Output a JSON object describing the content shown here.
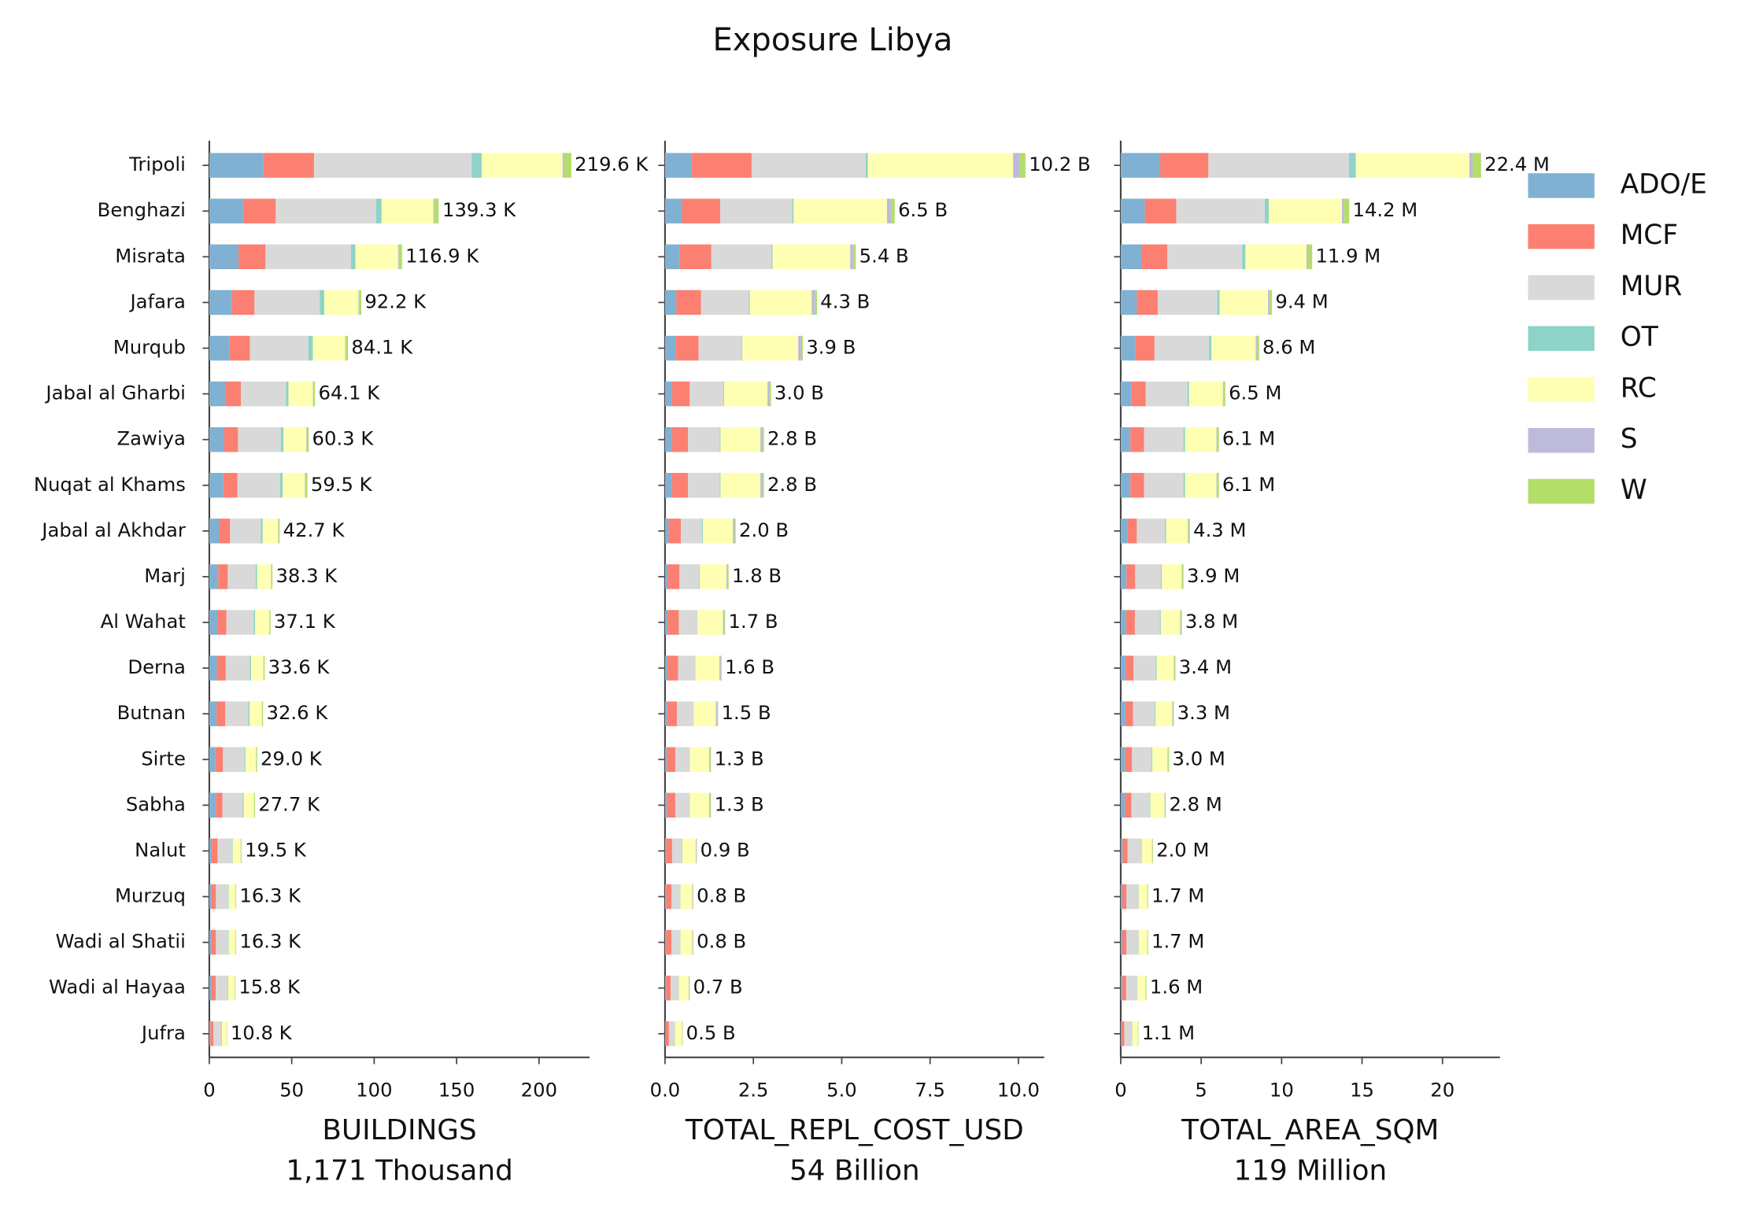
{
  "title": "Exposure Libya",
  "chart_data": [
    {
      "type": "bar",
      "orientation": "horizontal",
      "categories": [
        "Tripoli",
        "Benghazi",
        "Misrata",
        "Jafara",
        "Murqub",
        "Jabal al Gharbi",
        "Zawiya",
        "Nuqat al Khams",
        "Jabal al Akhdar",
        "Marj",
        "Al Wahat",
        "Derna",
        "Butnan",
        "Sirte",
        "Sabha",
        "Nalut",
        "Murzuq",
        "Wadi al Shatii",
        "Wadi al Hayaa",
        "Jufra"
      ],
      "xlabel": [
        "BUILDINGS",
        "1,171 Thousand"
      ],
      "xlim": [
        0,
        230.7
      ],
      "xticks": [
        0,
        50,
        100,
        150,
        200
      ],
      "totals": [
        219.6,
        139.3,
        116.9,
        92.2,
        84.1,
        64.1,
        60.3,
        59.5,
        42.7,
        38.3,
        37.1,
        33.6,
        32.6,
        29.0,
        27.7,
        19.5,
        16.3,
        16.3,
        15.8,
        10.8
      ],
      "total_labels": [
        "219.6 K",
        "139.3 K",
        "116.9 K",
        "92.2 K",
        "84.1 K",
        "64.1 K",
        "60.3 K",
        "59.5 K",
        "42.7 K",
        "38.3 K",
        "37.1 K",
        "33.6 K",
        "32.6 K",
        "29.0 K",
        "27.7 K",
        "19.5 K",
        "16.3 K",
        "16.3 K",
        "15.8 K",
        "10.8 K"
      ],
      "series": [
        {
          "name": "ADO/E",
          "color": "#80b1d3",
          "values": [
            32.8,
            20.5,
            17.7,
            13.7,
            12.3,
            9.6,
            8.9,
            8.5,
            6.0,
            5.4,
            4.8,
            4.6,
            4.4,
            3.5,
            4.0,
            1.5,
            1.2,
            1.2,
            1.2,
            0.6
          ]
        },
        {
          "name": "MCF",
          "color": "#fb8072",
          "values": [
            30.7,
            19.8,
            16.4,
            13.7,
            12.3,
            9.6,
            8.5,
            8.5,
            6.6,
            5.8,
            5.6,
            5.4,
            5.3,
            4.8,
            4.0,
            3.5,
            2.8,
            2.8,
            2.7,
            1.9
          ]
        },
        {
          "name": "MUR",
          "color": "#d9d9d9",
          "values": [
            95.6,
            60.8,
            51.8,
            39.6,
            35.5,
            27.3,
            26.0,
            26.0,
            18.6,
            16.9,
            16.6,
            14.5,
            14.0,
            13.0,
            12.3,
            8.8,
            7.4,
            7.4,
            7.2,
            4.9
          ]
        },
        {
          "name": "OT",
          "color": "#8dd3c7",
          "values": [
            6.1,
            3.4,
            2.7,
            2.7,
            2.7,
            1.5,
            1.6,
            1.5,
            1.2,
            0.9,
            0.8,
            0.8,
            0.8,
            0.6,
            0.6,
            0.4,
            0.4,
            0.4,
            0.4,
            0.3
          ]
        },
        {
          "name": "RC",
          "color": "#ffffb3",
          "values": [
            49.1,
            31.4,
            25.9,
            20.8,
            19.6,
            14.8,
            13.8,
            13.5,
            9.3,
            8.4,
            8.5,
            7.5,
            7.4,
            6.4,
            6.2,
            4.8,
            4.1,
            4.1,
            3.9,
            2.8
          ]
        },
        {
          "name": "S",
          "color": "#bebada",
          "values": [
            1.0,
            0.5,
            0.4,
            0.3,
            0.3,
            0.2,
            0.3,
            0.3,
            0.2,
            0.2,
            0.1,
            0.2,
            0.1,
            0.1,
            0.1,
            0.1,
            0.1,
            0.1,
            0.1,
            0.1
          ]
        },
        {
          "name": "W",
          "color": "#b3de69",
          "values": [
            4.3,
            2.7,
            2.0,
            1.4,
            1.4,
            1.1,
            1.2,
            1.2,
            0.8,
            0.7,
            0.7,
            0.6,
            0.6,
            0.6,
            0.5,
            0.4,
            0.3,
            0.3,
            0.3,
            0.2
          ]
        }
      ]
    },
    {
      "type": "bar",
      "orientation": "horizontal",
      "xlabel": [
        "TOTAL_REPL_COST_USD",
        "54 Billion"
      ],
      "xlim": [
        0,
        10.73
      ],
      "xticks": [
        {
          "value": 0,
          "label": "0.0"
        },
        2.5,
        {
          "value": 5,
          "label": "5.0"
        },
        7.5,
        {
          "value": 10,
          "label": "10.0"
        }
      ],
      "totals": [
        10.2,
        6.5,
        5.4,
        4.3,
        3.9,
        3.0,
        2.8,
        2.8,
        2.0,
        1.8,
        1.7,
        1.6,
        1.5,
        1.3,
        1.3,
        0.9,
        0.8,
        0.8,
        0.7,
        0.5
      ],
      "total_labels": [
        "10.2 B",
        "6.5 B",
        "5.4 B",
        "4.3 B",
        "3.9 B",
        "3.0 B",
        "2.8 B",
        "2.8 B",
        "2.0 B",
        "1.8 B",
        "1.7 B",
        "1.6 B",
        "1.5 B",
        "1.3 B",
        "1.3 B",
        "0.9 B",
        "0.8 B",
        "0.8 B",
        "0.7 B",
        "0.5 B"
      ],
      "series": [
        {
          "values": [
            0.76,
            0.48,
            0.41,
            0.32,
            0.3,
            0.2,
            0.2,
            0.2,
            0.1,
            0.08,
            0.07,
            0.07,
            0.06,
            0.05,
            0.05,
            0.03,
            0.03,
            0.03,
            0.03,
            0.02
          ]
        },
        {
          "values": [
            1.69,
            1.08,
            0.9,
            0.7,
            0.65,
            0.5,
            0.45,
            0.45,
            0.35,
            0.33,
            0.32,
            0.3,
            0.28,
            0.24,
            0.24,
            0.17,
            0.15,
            0.15,
            0.13,
            0.09
          ]
        },
        {
          "values": [
            3.23,
            2.04,
            1.7,
            1.35,
            1.22,
            0.95,
            0.9,
            0.9,
            0.6,
            0.55,
            0.52,
            0.48,
            0.46,
            0.4,
            0.4,
            0.28,
            0.25,
            0.25,
            0.22,
            0.16
          ]
        },
        {
          "values": [
            0.06,
            0.04,
            0.03,
            0.03,
            0.02,
            0.02,
            0.02,
            0.02,
            0.02,
            0.02,
            0.01,
            0.01,
            0.01,
            0.01,
            0.01,
            0.01,
            0.01,
            0.01,
            0.01,
            0.01
          ]
        },
        {
          "values": [
            4.11,
            2.64,
            2.2,
            1.75,
            1.58,
            1.23,
            1.13,
            1.13,
            0.85,
            0.76,
            0.72,
            0.68,
            0.63,
            0.55,
            0.55,
            0.38,
            0.33,
            0.33,
            0.28,
            0.2
          ]
        },
        {
          "values": [
            0.19,
            0.12,
            0.09,
            0.09,
            0.08,
            0.06,
            0.06,
            0.06,
            0.05,
            0.04,
            0.04,
            0.04,
            0.04,
            0.03,
            0.03,
            0.02,
            0.02,
            0.02,
            0.02,
            0.01
          ]
        },
        {
          "values": [
            0.16,
            0.1,
            0.07,
            0.06,
            0.05,
            0.04,
            0.04,
            0.04,
            0.03,
            0.02,
            0.02,
            0.02,
            0.02,
            0.02,
            0.02,
            0.01,
            0.01,
            0.01,
            0.01,
            0.01
          ]
        }
      ]
    },
    {
      "type": "bar",
      "orientation": "horizontal",
      "xlabel": [
        "TOTAL_AREA_SQM",
        "119 Million"
      ],
      "xlim": [
        0,
        23.57
      ],
      "xticks": [
        0,
        5,
        10,
        15,
        20
      ],
      "totals": [
        22.4,
        14.2,
        11.9,
        9.4,
        8.6,
        6.5,
        6.1,
        6.1,
        4.3,
        3.9,
        3.8,
        3.4,
        3.3,
        3.0,
        2.8,
        2.0,
        1.7,
        1.7,
        1.6,
        1.1
      ],
      "total_labels": [
        "22.4 M",
        "14.2 M",
        "11.9 M",
        "9.4 M",
        "8.6 M",
        "6.5 M",
        "6.1 M",
        "6.1 M",
        "4.3 M",
        "3.9 M",
        "3.8 M",
        "3.4 M",
        "3.3 M",
        "3.0 M",
        "2.8 M",
        "2.0 M",
        "1.7 M",
        "1.7 M",
        "1.6 M",
        "1.1 M"
      ],
      "series": [
        {
          "values": [
            2.45,
            1.5,
            1.3,
            1.0,
            0.9,
            0.65,
            0.6,
            0.6,
            0.4,
            0.35,
            0.33,
            0.3,
            0.29,
            0.26,
            0.25,
            0.12,
            0.1,
            0.1,
            0.1,
            0.05
          ]
        },
        {
          "values": [
            3.0,
            1.95,
            1.6,
            1.3,
            1.2,
            0.9,
            0.85,
            0.85,
            0.6,
            0.55,
            0.55,
            0.5,
            0.48,
            0.44,
            0.41,
            0.3,
            0.26,
            0.26,
            0.24,
            0.17
          ]
        },
        {
          "values": [
            8.74,
            5.5,
            4.65,
            3.7,
            3.4,
            2.6,
            2.45,
            2.45,
            1.75,
            1.6,
            1.55,
            1.38,
            1.34,
            1.22,
            1.14,
            0.85,
            0.72,
            0.72,
            0.68,
            0.47
          ]
        },
        {
          "values": [
            0.42,
            0.25,
            0.2,
            0.15,
            0.14,
            0.1,
            0.1,
            0.1,
            0.07,
            0.06,
            0.06,
            0.05,
            0.05,
            0.05,
            0.04,
            0.03,
            0.03,
            0.03,
            0.02,
            0.02
          ]
        },
        {
          "values": [
            7.06,
            4.55,
            3.8,
            3.0,
            2.75,
            2.1,
            1.95,
            1.95,
            1.35,
            1.23,
            1.2,
            1.07,
            1.04,
            0.94,
            0.88,
            0.64,
            0.54,
            0.54,
            0.51,
            0.35
          ]
        },
        {
          "values": [
            0.2,
            0.13,
            0.1,
            0.08,
            0.07,
            0.05,
            0.05,
            0.05,
            0.04,
            0.03,
            0.03,
            0.03,
            0.03,
            0.03,
            0.02,
            0.02,
            0.02,
            0.02,
            0.02,
            0.01
          ]
        },
        {
          "values": [
            0.53,
            0.32,
            0.25,
            0.17,
            0.14,
            0.1,
            0.1,
            0.1,
            0.09,
            0.08,
            0.08,
            0.07,
            0.07,
            0.06,
            0.06,
            0.04,
            0.03,
            0.03,
            0.03,
            0.03
          ]
        }
      ]
    }
  ]
}
